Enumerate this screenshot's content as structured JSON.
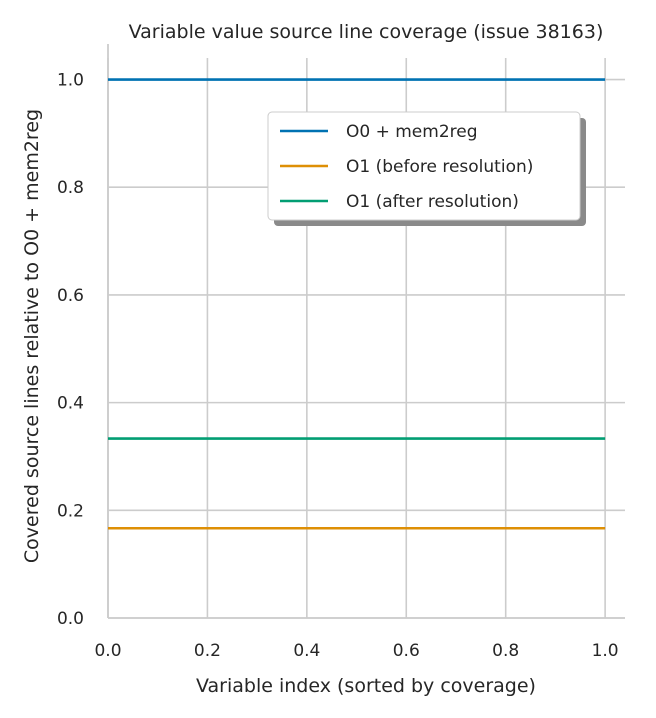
{
  "chart_data": {
    "type": "line",
    "title": "Variable value source line coverage (issue 38163)",
    "xlabel": "Variable index (sorted by coverage)",
    "ylabel": "Covered source lines relative to O0 + mem2reg",
    "xlim": [
      0.0,
      1.04
    ],
    "ylim": [
      0.0,
      1.04
    ],
    "xticks": [
      "0.0",
      "0.2",
      "0.4",
      "0.6",
      "0.8",
      "1.0"
    ],
    "yticks": [
      "0.0",
      "0.2",
      "0.4",
      "0.6",
      "0.8",
      "1.0"
    ],
    "grid": true,
    "legend_position": "upper-right",
    "series": [
      {
        "name": "O0 + mem2reg",
        "color": "#0072b2",
        "x": [
          0.0,
          1.0
        ],
        "y": [
          1.0,
          1.0
        ]
      },
      {
        "name": "O1 (before resolution)",
        "color": "#de8f05",
        "x": [
          0.0,
          1.0
        ],
        "y": [
          0.1667,
          0.1667
        ]
      },
      {
        "name": "O1 (after resolution)",
        "color": "#029e73",
        "x": [
          0.0,
          1.0
        ],
        "y": [
          0.3333,
          0.3333
        ]
      }
    ]
  }
}
